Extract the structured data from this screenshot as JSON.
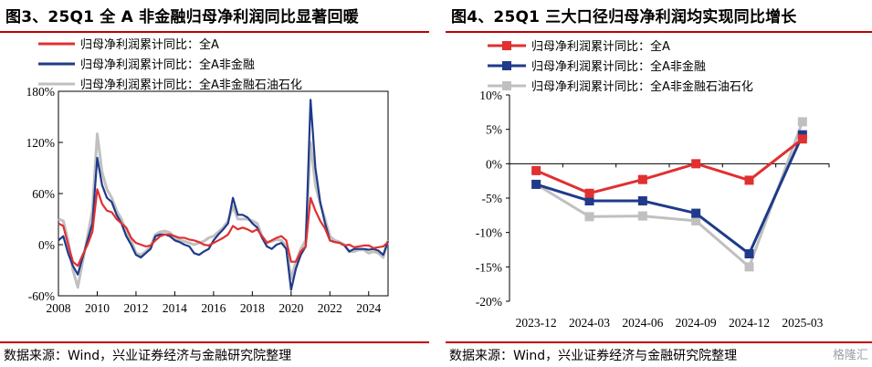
{
  "charts": [
    {
      "id": "left",
      "title": "图3、25Q1 全 A 非金融归母净利润同比显著回暖",
      "source": "数据来源：Wind，兴业证券经济与金融研究院整理",
      "colors": {
        "全A": "#e03030",
        "全A非金融": "#1f3a8a",
        "全A非金融石油石化": "#c0c0c0"
      }
    },
    {
      "id": "right",
      "title": "图4、25Q1 三大口径归母净利润均实现同比增长",
      "source": "数据来源：Wind，兴业证券经济与金融研究院整理",
      "watermark": "格隆汇",
      "colors": {
        "全A": "#e03030",
        "全A非金融": "#1f3a8a",
        "全A非金融石油石化": "#c0c0c0"
      }
    }
  ],
  "chart_data": [
    {
      "type": "line",
      "title": "图3、25Q1 全 A 非金融归母净利润同比显著回暖",
      "x_ticks": [
        "2008",
        "2010",
        "2012",
        "2014",
        "2016",
        "2018",
        "2020",
        "2022",
        "2024"
      ],
      "y_ticks": [
        "180%",
        "120%",
        "60%",
        "0%",
        "-60%"
      ],
      "ylim": [
        -60,
        180
      ],
      "xlim": [
        2008,
        2025
      ],
      "grid": false,
      "legend_position": "top-left",
      "series": [
        {
          "name": "归母净利润累计同比：全A",
          "color": "#e03030",
          "points": [
            [
              2008.0,
              25
            ],
            [
              2008.25,
              22
            ],
            [
              2008.5,
              0
            ],
            [
              2008.75,
              -20
            ],
            [
              2009.0,
              -25
            ],
            [
              2009.25,
              -12
            ],
            [
              2009.5,
              0
            ],
            [
              2009.75,
              15
            ],
            [
              2010.0,
              65
            ],
            [
              2010.25,
              48
            ],
            [
              2010.5,
              40
            ],
            [
              2010.75,
              38
            ],
            [
              2011.0,
              30
            ],
            [
              2011.25,
              25
            ],
            [
              2011.5,
              20
            ],
            [
              2011.75,
              8
            ],
            [
              2012.0,
              2
            ],
            [
              2012.25,
              0
            ],
            [
              2012.5,
              -2
            ],
            [
              2012.75,
              -1
            ],
            [
              2013.0,
              5
            ],
            [
              2013.25,
              10
            ],
            [
              2013.5,
              12
            ],
            [
              2013.75,
              12
            ],
            [
              2014.0,
              10
            ],
            [
              2014.25,
              8
            ],
            [
              2014.5,
              8
            ],
            [
              2014.75,
              6
            ],
            [
              2015.0,
              5
            ],
            [
              2015.25,
              3
            ],
            [
              2015.5,
              0
            ],
            [
              2015.75,
              -1
            ],
            [
              2016.0,
              2
            ],
            [
              2016.25,
              5
            ],
            [
              2016.5,
              8
            ],
            [
              2016.75,
              12
            ],
            [
              2017.0,
              22
            ],
            [
              2017.25,
              18
            ],
            [
              2017.5,
              20
            ],
            [
              2017.75,
              18
            ],
            [
              2018.0,
              15
            ],
            [
              2018.25,
              18
            ],
            [
              2018.5,
              10
            ],
            [
              2018.75,
              2
            ],
            [
              2019.0,
              5
            ],
            [
              2019.25,
              8
            ],
            [
              2019.5,
              10
            ],
            [
              2019.75,
              5
            ],
            [
              2020.0,
              -20
            ],
            [
              2020.25,
              -20
            ],
            [
              2020.5,
              -8
            ],
            [
              2020.75,
              -2
            ],
            [
              2021.0,
              55
            ],
            [
              2021.25,
              40
            ],
            [
              2021.5,
              28
            ],
            [
              2021.75,
              19
            ],
            [
              2022.0,
              5
            ],
            [
              2022.25,
              3
            ],
            [
              2022.5,
              2
            ],
            [
              2022.75,
              -1
            ],
            [
              2023.0,
              0
            ],
            [
              2023.25,
              -3
            ],
            [
              2023.5,
              -2
            ],
            [
              2023.75,
              -1
            ],
            [
              2024.0,
              -1
            ],
            [
              2024.25,
              -4
            ],
            [
              2024.5,
              -3
            ],
            [
              2024.75,
              -2
            ],
            [
              2025.0,
              3
            ]
          ]
        },
        {
          "name": "归母净利润累计同比：全A非金融",
          "color": "#1f3a8a",
          "points": [
            [
              2008.0,
              5
            ],
            [
              2008.25,
              10
            ],
            [
              2008.5,
              -10
            ],
            [
              2008.75,
              -25
            ],
            [
              2009.0,
              -35
            ],
            [
              2009.25,
              -15
            ],
            [
              2009.5,
              5
            ],
            [
              2009.75,
              25
            ],
            [
              2010.0,
              102
            ],
            [
              2010.25,
              70
            ],
            [
              2010.5,
              55
            ],
            [
              2010.75,
              50
            ],
            [
              2011.0,
              35
            ],
            [
              2011.25,
              25
            ],
            [
              2011.5,
              10
            ],
            [
              2011.75,
              0
            ],
            [
              2012.0,
              -12
            ],
            [
              2012.25,
              -15
            ],
            [
              2012.5,
              -10
            ],
            [
              2012.75,
              -5
            ],
            [
              2013.0,
              10
            ],
            [
              2013.25,
              12
            ],
            [
              2013.5,
              12
            ],
            [
              2013.75,
              10
            ],
            [
              2014.0,
              5
            ],
            [
              2014.25,
              3
            ],
            [
              2014.5,
              0
            ],
            [
              2014.75,
              -2
            ],
            [
              2015.0,
              -10
            ],
            [
              2015.25,
              -12
            ],
            [
              2015.5,
              -8
            ],
            [
              2015.75,
              -5
            ],
            [
              2016.0,
              5
            ],
            [
              2016.25,
              12
            ],
            [
              2016.5,
              18
            ],
            [
              2016.75,
              25
            ],
            [
              2017.0,
              55
            ],
            [
              2017.25,
              35
            ],
            [
              2017.5,
              35
            ],
            [
              2017.75,
              32
            ],
            [
              2018.0,
              25
            ],
            [
              2018.25,
              20
            ],
            [
              2018.5,
              8
            ],
            [
              2018.75,
              -2
            ],
            [
              2019.0,
              -5
            ],
            [
              2019.25,
              0
            ],
            [
              2019.5,
              2
            ],
            [
              2019.75,
              -5
            ],
            [
              2020.0,
              -53
            ],
            [
              2020.25,
              -28
            ],
            [
              2020.5,
              -12
            ],
            [
              2020.75,
              -2
            ],
            [
              2021.0,
              170
            ],
            [
              2021.25,
              90
            ],
            [
              2021.5,
              50
            ],
            [
              2021.75,
              25
            ],
            [
              2022.0,
              5
            ],
            [
              2022.25,
              3
            ],
            [
              2022.5,
              2
            ],
            [
              2022.75,
              -1
            ],
            [
              2023.0,
              -8
            ],
            [
              2023.25,
              -5
            ],
            [
              2023.5,
              -5
            ],
            [
              2023.75,
              -5
            ],
            [
              2024.0,
              -6
            ],
            [
              2024.25,
              -5
            ],
            [
              2024.5,
              -7
            ],
            [
              2024.75,
              -12
            ],
            [
              2025.0,
              4
            ]
          ]
        },
        {
          "name": "归母净利润累计同比：全A非金融石油石化",
          "color": "#c0c0c0",
          "points": [
            [
              2008.0,
              30
            ],
            [
              2008.25,
              28
            ],
            [
              2008.5,
              5
            ],
            [
              2008.75,
              -30
            ],
            [
              2009.0,
              -50
            ],
            [
              2009.25,
              -20
            ],
            [
              2009.5,
              10
            ],
            [
              2009.75,
              40
            ],
            [
              2010.0,
              130
            ],
            [
              2010.25,
              85
            ],
            [
              2010.5,
              65
            ],
            [
              2010.75,
              55
            ],
            [
              2011.0,
              40
            ],
            [
              2011.25,
              30
            ],
            [
              2011.5,
              15
            ],
            [
              2011.75,
              5
            ],
            [
              2012.0,
              -10
            ],
            [
              2012.25,
              -12
            ],
            [
              2012.5,
              -8
            ],
            [
              2012.75,
              -2
            ],
            [
              2013.0,
              12
            ],
            [
              2013.25,
              15
            ],
            [
              2013.5,
              16
            ],
            [
              2013.75,
              14
            ],
            [
              2014.0,
              8
            ],
            [
              2014.25,
              5
            ],
            [
              2014.5,
              4
            ],
            [
              2014.75,
              2
            ],
            [
              2015.0,
              0
            ],
            [
              2015.25,
              2
            ],
            [
              2015.5,
              4
            ],
            [
              2015.75,
              8
            ],
            [
              2016.0,
              10
            ],
            [
              2016.25,
              15
            ],
            [
              2016.5,
              20
            ],
            [
              2016.75,
              28
            ],
            [
              2017.0,
              45
            ],
            [
              2017.25,
              30
            ],
            [
              2017.5,
              30
            ],
            [
              2017.75,
              30
            ],
            [
              2018.0,
              28
            ],
            [
              2018.25,
              25
            ],
            [
              2018.5,
              10
            ],
            [
              2018.75,
              3
            ],
            [
              2019.0,
              4
            ],
            [
              2019.25,
              6
            ],
            [
              2019.5,
              5
            ],
            [
              2019.75,
              -2
            ],
            [
              2020.0,
              -40
            ],
            [
              2020.25,
              -20
            ],
            [
              2020.5,
              -5
            ],
            [
              2020.75,
              5
            ],
            [
              2021.0,
              120
            ],
            [
              2021.25,
              70
            ],
            [
              2021.5,
              48
            ],
            [
              2021.75,
              30
            ],
            [
              2022.0,
              10
            ],
            [
              2022.25,
              5
            ],
            [
              2022.5,
              3
            ],
            [
              2022.75,
              0
            ],
            [
              2023.0,
              -8
            ],
            [
              2023.25,
              -8
            ],
            [
              2023.5,
              -6
            ],
            [
              2023.75,
              -6
            ],
            [
              2024.0,
              -10
            ],
            [
              2024.25,
              -8
            ],
            [
              2024.5,
              -10
            ],
            [
              2024.75,
              -15
            ],
            [
              2025.0,
              5
            ]
          ]
        }
      ]
    },
    {
      "type": "line",
      "title": "图4、25Q1 三大口径归母净利润均实现同比增长",
      "categories": [
        "2023-12",
        "2024-03",
        "2024-06",
        "2024-09",
        "2024-12",
        "2025-03"
      ],
      "y_ticks": [
        "10%",
        "5%",
        "0%",
        "-5%",
        "-10%",
        "-15%",
        "-20%"
      ],
      "ylim": [
        -20,
        10
      ],
      "grid": false,
      "legend_position": "top-left",
      "markers": "square",
      "series": [
        {
          "name": "归母净利润累计同比：全A",
          "color": "#e03030",
          "values": [
            -1.0,
            -4.3,
            -2.3,
            0.0,
            -2.4,
            3.6
          ]
        },
        {
          "name": "归母净利润累计同比：全A非金融",
          "color": "#1f3a8a",
          "values": [
            -3.0,
            -5.4,
            -5.4,
            -7.2,
            -13.1,
            4.2
          ]
        },
        {
          "name": "归母净利润累计同比：全A非金融石油石化",
          "color": "#c0c0c0",
          "values": [
            -3.0,
            -7.7,
            -7.6,
            -8.3,
            -15.0,
            6.1
          ]
        }
      ]
    }
  ]
}
